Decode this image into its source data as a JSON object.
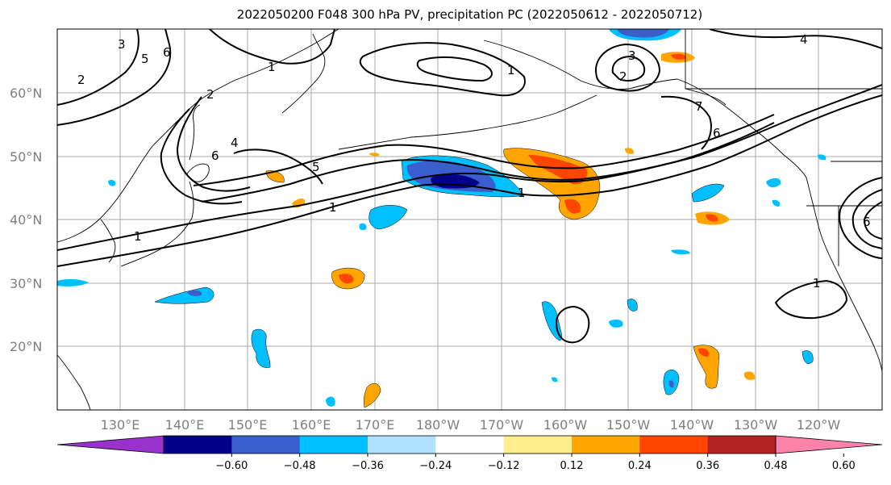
{
  "title": "2022050200 F048 300 hPa PV, precipitation PC (2022050612 - 2022050712)",
  "map": {
    "lat_ticks": [
      "60°N",
      "50°N",
      "40°N",
      "30°N",
      "20°N"
    ],
    "lon_ticks": [
      "130°E",
      "140°E",
      "150°E",
      "160°E",
      "170°E",
      "180°W",
      "170°W",
      "160°W",
      "150°W",
      "140°W",
      "130°W",
      "120°W"
    ],
    "contour_labels": [
      "2",
      "3",
      "5",
      "6",
      "1",
      "2",
      "4",
      "5",
      "6",
      "1",
      "1",
      "1",
      "4",
      "3",
      "2",
      "7",
      "6",
      "1",
      "6",
      "1"
    ]
  },
  "colorbar": {
    "colors": [
      "#9932cc",
      "#00008b",
      "#3a5fcd",
      "#00bfff",
      "#b0e2ff",
      "#ffffff",
      "#ffec8b",
      "#ffa500",
      "#ff4500",
      "#b22222",
      "#ff82ab"
    ],
    "tick_labels": [
      "−0.60",
      "−0.48",
      "−0.36",
      "−0.24",
      "−0.12",
      "0.12",
      "0.24",
      "0.36",
      "0.48",
      "0.60"
    ]
  }
}
